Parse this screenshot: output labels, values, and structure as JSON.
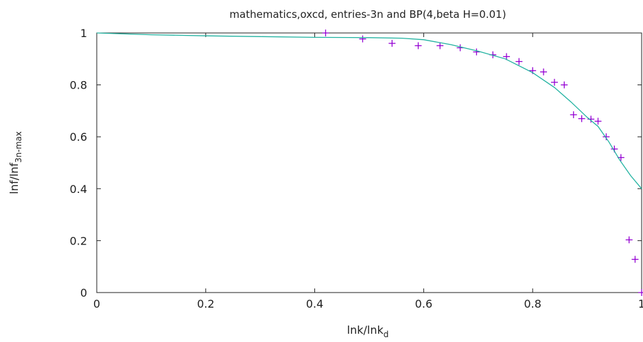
{
  "chart_data": {
    "type": "scatter",
    "title": "mathematics,oxcd, entries-3n and BP(4,beta H=0.01)",
    "xlabel": {
      "base": "lnk/lnk",
      "sub": "d"
    },
    "ylabel": {
      "base": "lnf/lnf",
      "sub": "3n-max"
    },
    "xlim": [
      0,
      1
    ],
    "ylim": [
      0,
      1
    ],
    "x_ticks": [
      0,
      0.2,
      0.4,
      0.6,
      0.8,
      1
    ],
    "y_ticks": [
      0,
      0.2,
      0.4,
      0.6,
      0.8,
      1
    ],
    "x_tick_labels": [
      "0",
      "0.2",
      "0.4",
      "0.6",
      "0.8",
      "1"
    ],
    "y_tick_labels": [
      "0",
      "0.2",
      "0.4",
      "0.6",
      "0.8",
      "1"
    ],
    "grid": false,
    "legend": "none",
    "series": [
      {
        "kind": "points",
        "marker": "plus",
        "color": "#9400d3",
        "points": [
          [
            0.42,
            1.0
          ],
          [
            0.488,
            0.977
          ],
          [
            0.542,
            0.96
          ],
          [
            0.59,
            0.951
          ],
          [
            0.63,
            0.951
          ],
          [
            0.667,
            0.943
          ],
          [
            0.697,
            0.927
          ],
          [
            0.727,
            0.916
          ],
          [
            0.752,
            0.909
          ],
          [
            0.775,
            0.89
          ],
          [
            0.8,
            0.855
          ],
          [
            0.82,
            0.85
          ],
          [
            0.84,
            0.81
          ],
          [
            0.858,
            0.8
          ],
          [
            0.875,
            0.685
          ],
          [
            0.89,
            0.67
          ],
          [
            0.907,
            0.668
          ],
          [
            0.92,
            0.66
          ],
          [
            0.935,
            0.6
          ],
          [
            0.95,
            0.553
          ],
          [
            0.962,
            0.52
          ],
          [
            0.977,
            0.203
          ],
          [
            0.988,
            0.128
          ],
          [
            1.0,
            0.0
          ]
        ]
      },
      {
        "kind": "line",
        "color": "#20b2a0",
        "points": [
          [
            0.0,
            1.0
          ],
          [
            0.1,
            0.993
          ],
          [
            0.2,
            0.989
          ],
          [
            0.3,
            0.986
          ],
          [
            0.4,
            0.983
          ],
          [
            0.5,
            0.982
          ],
          [
            0.56,
            0.98
          ],
          [
            0.6,
            0.974
          ],
          [
            0.65,
            0.955
          ],
          [
            0.7,
            0.93
          ],
          [
            0.75,
            0.9
          ],
          [
            0.8,
            0.847
          ],
          [
            0.84,
            0.79
          ],
          [
            0.87,
            0.735
          ],
          [
            0.9,
            0.675
          ],
          [
            0.92,
            0.64
          ],
          [
            0.94,
            0.58
          ],
          [
            0.96,
            0.51
          ],
          [
            0.98,
            0.45
          ],
          [
            1.0,
            0.4
          ]
        ]
      }
    ]
  }
}
